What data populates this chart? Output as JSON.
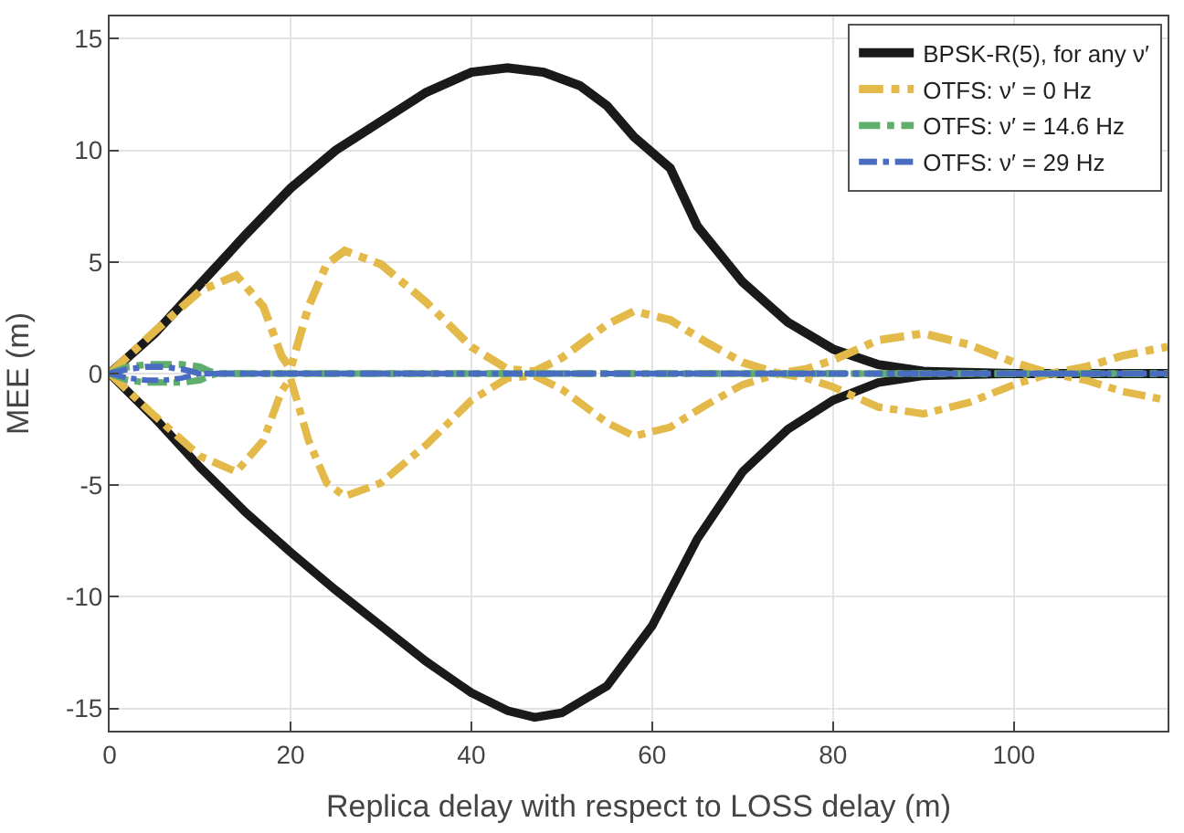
{
  "chart_data": {
    "type": "line",
    "xlabel": "Replica delay with respect to LOSS delay (m)",
    "ylabel": "MEE (m)",
    "xlim": [
      0,
      117
    ],
    "ylim": [
      -16,
      16
    ],
    "xticks": [
      0,
      20,
      40,
      60,
      80,
      100
    ],
    "yticks": [
      -15,
      -10,
      -5,
      0,
      5,
      10,
      15
    ],
    "grid": true,
    "legend": "top right",
    "marker": "none",
    "series": [
      {
        "name": "BPSK-R(5), for any ν′",
        "color": "#1a1a1a",
        "line_style": "solid",
        "x": [
          0,
          5,
          10,
          15,
          20,
          25,
          30,
          35,
          40,
          44,
          48,
          52,
          55,
          58,
          60,
          62,
          65,
          70,
          75,
          80,
          85,
          90,
          100,
          117
        ],
        "values": [
          0,
          1.8,
          4.0,
          6.2,
          8.3,
          10.0,
          11.3,
          12.6,
          13.5,
          13.7,
          13.5,
          12.9,
          12.0,
          10.6,
          9.9,
          9.2,
          6.6,
          4.1,
          2.3,
          1.1,
          0.4,
          0.1,
          0,
          0
        ]
      },
      {
        "color": "#1a1a1a",
        "line_style": "solid",
        "x": [
          0,
          5,
          10,
          15,
          20,
          25,
          30,
          35,
          40,
          44,
          47,
          50,
          55,
          60,
          65,
          70,
          75,
          80,
          85,
          90,
          100,
          117
        ],
        "values": [
          0,
          -2.0,
          -4.2,
          -6.2,
          -8.0,
          -9.7,
          -11.3,
          -12.9,
          -14.3,
          -15.1,
          -15.4,
          -15.2,
          -14.0,
          -11.3,
          -7.4,
          -4.4,
          -2.5,
          -1.2,
          -0.4,
          -0.1,
          0,
          0
        ]
      },
      {
        "name": "OTFS: ν′ = 0 Hz",
        "color": "#e3b94a",
        "line_style": "dashed",
        "x": [
          0,
          5,
          10,
          14,
          17,
          19,
          20,
          22,
          24,
          26,
          30,
          35,
          40,
          44,
          47,
          50,
          55,
          58,
          62,
          66,
          70,
          74,
          77,
          80,
          85,
          90,
          95,
          100,
          104,
          108,
          112,
          117
        ],
        "values": [
          0,
          1.9,
          3.7,
          4.4,
          3.0,
          0.8,
          0.2,
          3.0,
          4.9,
          5.5,
          4.9,
          3.2,
          1.2,
          0.2,
          0.1,
          0.7,
          2.2,
          2.8,
          2.4,
          1.4,
          0.5,
          0,
          0.2,
          0.6,
          1.5,
          1.8,
          1.3,
          0.5,
          0,
          0.3,
          0.8,
          1.2
        ]
      },
      {
        "color": "#e3b94a",
        "line_style": "dashed",
        "x": [
          0,
          5,
          10,
          14,
          17,
          19,
          20,
          22,
          24,
          26,
          30,
          35,
          40,
          44,
          47,
          50,
          55,
          58,
          62,
          66,
          70,
          74,
          77,
          80,
          85,
          90,
          95,
          100,
          104,
          108,
          112,
          117
        ],
        "values": [
          0,
          -1.9,
          -3.7,
          -4.4,
          -3.0,
          -0.8,
          -0.2,
          -3.0,
          -4.9,
          -5.5,
          -4.9,
          -3.2,
          -1.2,
          -0.2,
          -0.1,
          -0.7,
          -2.2,
          -2.8,
          -2.4,
          -1.4,
          -0.5,
          0,
          -0.2,
          -0.6,
          -1.5,
          -1.8,
          -1.3,
          -0.5,
          0,
          -0.3,
          -0.8,
          -1.2
        ]
      },
      {
        "name": "OTFS: ν′ = 14.6 Hz",
        "color": "#5fae6b",
        "line_style": "dashed",
        "x": [
          0,
          2,
          4,
          6,
          8,
          10,
          11,
          12,
          117
        ],
        "values": [
          0,
          0.3,
          0.4,
          0.4,
          0.4,
          0.3,
          0.1,
          0,
          0
        ]
      },
      {
        "color": "#5fae6b",
        "line_style": "dashed",
        "x": [
          0,
          2,
          4,
          6,
          8,
          10,
          11,
          12,
          117
        ],
        "values": [
          0,
          -0.3,
          -0.4,
          -0.4,
          -0.4,
          -0.3,
          -0.1,
          0,
          0
        ]
      },
      {
        "name": "OTFS: ν′ = 29 Hz",
        "color": "#4a6cc0",
        "line_style": "dashed",
        "x": [
          0,
          2,
          4,
          6,
          8,
          9,
          10,
          117
        ],
        "values": [
          0,
          0.2,
          0.3,
          0.3,
          0.2,
          0.1,
          0,
          0
        ]
      },
      {
        "color": "#4a6cc0",
        "line_style": "dashed",
        "x": [
          0,
          2,
          4,
          6,
          8,
          9,
          10,
          117
        ],
        "values": [
          0,
          -0.2,
          -0.3,
          -0.3,
          -0.2,
          -0.1,
          0,
          0
        ]
      }
    ]
  }
}
